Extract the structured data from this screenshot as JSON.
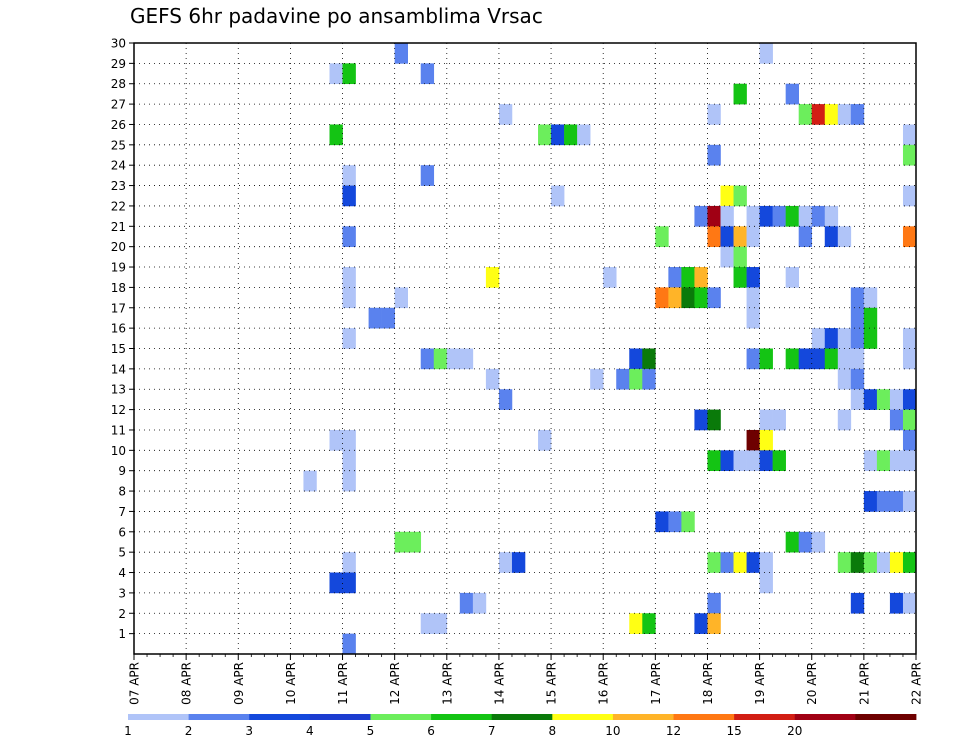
{
  "chart_data": {
    "type": "heatmap",
    "title": "GEFS 6hr padavine po ansamblima Vrsac",
    "x_tick_labels": [
      "07 APR",
      "08 APR",
      "09 APR",
      "10 APR",
      "11 APR",
      "12 APR",
      "13 APR",
      "14 APR",
      "15 APR",
      "16 APR",
      "17 APR",
      "18 APR",
      "19 APR",
      "20 APR",
      "21 APR",
      "22 APR"
    ],
    "y_tick_labels": [
      "1",
      "2",
      "3",
      "4",
      "5",
      "6",
      "7",
      "8",
      "9",
      "10",
      "11",
      "12",
      "13",
      "14",
      "15",
      "16",
      "17",
      "18",
      "19",
      "20",
      "21",
      "22",
      "23",
      "24",
      "25",
      "26",
      "27",
      "28",
      "29",
      "30"
    ],
    "x_range": [
      "07 APR 00Z",
      "22 APR 00Z"
    ],
    "y_range": [
      0,
      30
    ],
    "x_step_hours": 6,
    "grid": true,
    "colorbar": {
      "levels": [
        "1",
        "2",
        "3",
        "4",
        "5",
        "6",
        "7",
        "8",
        "10",
        "12",
        "15",
        "20"
      ],
      "colors": [
        "#b0c4f8",
        "#5a82ee",
        "#1448dc",
        "#1c3cd0",
        "#6cee5c",
        "#14c414",
        "#0a7a0a",
        "#ffff14",
        "#ffb428",
        "#ff7814",
        "#d21e14",
        "#a00014",
        "#6e0000"
      ]
    },
    "cells": [
      {
        "m": 30,
        "t": "12 APR 00Z",
        "b": 1
      },
      {
        "m": 30,
        "t": "19 APR 00Z",
        "b": 0
      },
      {
        "m": 29,
        "t": "10 APR 18Z",
        "b": 0
      },
      {
        "m": 29,
        "t": "11 APR 00Z",
        "b": 5
      },
      {
        "m": 29,
        "t": "12 APR 12Z",
        "b": 1
      },
      {
        "m": 28,
        "t": "18 APR 12Z",
        "b": 5
      },
      {
        "m": 28,
        "t": "19 APR 12Z",
        "b": 1
      },
      {
        "m": 27,
        "t": "14 APR 00Z",
        "b": 0
      },
      {
        "m": 27,
        "t": "18 APR 00Z",
        "b": 0
      },
      {
        "m": 27,
        "t": "19 APR 18Z",
        "b": 4
      },
      {
        "m": 27,
        "t": "20 APR 00Z",
        "b": 10
      },
      {
        "m": 27,
        "t": "20 APR 06Z",
        "b": 7
      },
      {
        "m": 27,
        "t": "20 APR 12Z",
        "b": 0
      },
      {
        "m": 27,
        "t": "20 APR 18Z",
        "b": 1
      },
      {
        "m": 26,
        "t": "10 APR 18Z",
        "b": 5
      },
      {
        "m": 26,
        "t": "14 APR 18Z",
        "b": 4
      },
      {
        "m": 26,
        "t": "15 APR 00Z",
        "b": 2
      },
      {
        "m": 26,
        "t": "15 APR 06Z",
        "b": 5
      },
      {
        "m": 26,
        "t": "15 APR 12Z",
        "b": 0
      },
      {
        "m": 26,
        "t": "21 APR 18Z",
        "b": 0
      },
      {
        "m": 25,
        "t": "18 APR 00Z",
        "b": 1
      },
      {
        "m": 25,
        "t": "21 APR 18Z",
        "b": 4
      },
      {
        "m": 24,
        "t": "11 APR 00Z",
        "b": 0
      },
      {
        "m": 24,
        "t": "12 APR 12Z",
        "b": 1
      },
      {
        "m": 23,
        "t": "11 APR 00Z",
        "b": 2
      },
      {
        "m": 23,
        "t": "15 APR 00Z",
        "b": 0
      },
      {
        "m": 23,
        "t": "18 APR 06Z",
        "b": 7
      },
      {
        "m": 23,
        "t": "18 APR 12Z",
        "b": 4
      },
      {
        "m": 23,
        "t": "21 APR 18Z",
        "b": 0
      },
      {
        "m": 22,
        "t": "17 APR 18Z",
        "b": 1
      },
      {
        "m": 22,
        "t": "18 APR 00Z",
        "b": 11
      },
      {
        "m": 22,
        "t": "18 APR 06Z",
        "b": 0
      },
      {
        "m": 22,
        "t": "18 APR 18Z",
        "b": 0
      },
      {
        "m": 22,
        "t": "19 APR 00Z",
        "b": 2
      },
      {
        "m": 22,
        "t": "19 APR 06Z",
        "b": 1
      },
      {
        "m": 22,
        "t": "19 APR 12Z",
        "b": 5
      },
      {
        "m": 22,
        "t": "19 APR 18Z",
        "b": 0
      },
      {
        "m": 22,
        "t": "20 APR 00Z",
        "b": 1
      },
      {
        "m": 22,
        "t": "20 APR 06Z",
        "b": 0
      },
      {
        "m": 21,
        "t": "11 APR 00Z",
        "b": 1
      },
      {
        "m": 21,
        "t": "17 APR 00Z",
        "b": 4
      },
      {
        "m": 21,
        "t": "18 APR 00Z",
        "b": 9
      },
      {
        "m": 21,
        "t": "18 APR 06Z",
        "b": 2
      },
      {
        "m": 21,
        "t": "18 APR 12Z",
        "b": 8
      },
      {
        "m": 21,
        "t": "18 APR 18Z",
        "b": 0
      },
      {
        "m": 21,
        "t": "19 APR 18Z",
        "b": 1
      },
      {
        "m": 21,
        "t": "20 APR 06Z",
        "b": 2
      },
      {
        "m": 21,
        "t": "20 APR 12Z",
        "b": 0
      },
      {
        "m": 21,
        "t": "21 APR 18Z",
        "b": 9
      },
      {
        "m": 20,
        "t": "18 APR 06Z",
        "b": 0
      },
      {
        "m": 20,
        "t": "18 APR 12Z",
        "b": 4
      },
      {
        "m": 19,
        "t": "11 APR 00Z",
        "b": 0
      },
      {
        "m": 19,
        "t": "13 APR 18Z",
        "b": 7
      },
      {
        "m": 19,
        "t": "16 APR 00Z",
        "b": 0
      },
      {
        "m": 19,
        "t": "17 APR 06Z",
        "b": 1
      },
      {
        "m": 19,
        "t": "17 APR 12Z",
        "b": 5
      },
      {
        "m": 19,
        "t": "17 APR 18Z",
        "b": 8
      },
      {
        "m": 19,
        "t": "18 APR 12Z",
        "b": 5
      },
      {
        "m": 19,
        "t": "18 APR 18Z",
        "b": 2
      },
      {
        "m": 19,
        "t": "19 APR 12Z",
        "b": 0
      },
      {
        "m": 18,
        "t": "11 APR 00Z",
        "b": 0
      },
      {
        "m": 18,
        "t": "12 APR 00Z",
        "b": 0
      },
      {
        "m": 18,
        "t": "17 APR 00Z",
        "b": 9
      },
      {
        "m": 18,
        "t": "17 APR 06Z",
        "b": 8
      },
      {
        "m": 18,
        "t": "17 APR 12Z",
        "b": 6
      },
      {
        "m": 18,
        "t": "17 APR 18Z",
        "b": 5
      },
      {
        "m": 18,
        "t": "18 APR 00Z",
        "b": 1
      },
      {
        "m": 18,
        "t": "18 APR 18Z",
        "b": 0
      },
      {
        "m": 18,
        "t": "20 APR 18Z",
        "b": 1
      },
      {
        "m": 18,
        "t": "21 APR 00Z",
        "b": 0
      },
      {
        "m": 17,
        "t": "11 APR 12Z",
        "b": 1
      },
      {
        "m": 17,
        "t": "11 APR 18Z",
        "b": 1
      },
      {
        "m": 17,
        "t": "18 APR 18Z",
        "b": 0
      },
      {
        "m": 17,
        "t": "20 APR 18Z",
        "b": 1
      },
      {
        "m": 17,
        "t": "21 APR 00Z",
        "b": 5
      },
      {
        "m": 16,
        "t": "11 APR 00Z",
        "b": 0
      },
      {
        "m": 16,
        "t": "20 APR 00Z",
        "b": 0
      },
      {
        "m": 16,
        "t": "20 APR 06Z",
        "b": 2
      },
      {
        "m": 16,
        "t": "20 APR 12Z",
        "b": 0
      },
      {
        "m": 16,
        "t": "20 APR 18Z",
        "b": 1
      },
      {
        "m": 16,
        "t": "21 APR 00Z",
        "b": 5
      },
      {
        "m": 16,
        "t": "21 APR 18Z",
        "b": 0
      },
      {
        "m": 15,
        "t": "12 APR 12Z",
        "b": 1
      },
      {
        "m": 15,
        "t": "12 APR 18Z",
        "b": 4
      },
      {
        "m": 15,
        "t": "13 APR 00Z",
        "b": 0
      },
      {
        "m": 15,
        "t": "13 APR 06Z",
        "b": 0
      },
      {
        "m": 15,
        "t": "16 APR 12Z",
        "b": 2
      },
      {
        "m": 15,
        "t": "16 APR 18Z",
        "b": 6
      },
      {
        "m": 15,
        "t": "18 APR 18Z",
        "b": 1
      },
      {
        "m": 15,
        "t": "19 APR 00Z",
        "b": 5
      },
      {
        "m": 15,
        "t": "19 APR 12Z",
        "b": 5
      },
      {
        "m": 15,
        "t": "19 APR 18Z",
        "b": 2
      },
      {
        "m": 15,
        "t": "20 APR 00Z",
        "b": 2
      },
      {
        "m": 15,
        "t": "20 APR 06Z",
        "b": 5
      },
      {
        "m": 15,
        "t": "20 APR 12Z",
        "b": 0
      },
      {
        "m": 15,
        "t": "20 APR 18Z",
        "b": 0
      },
      {
        "m": 15,
        "t": "21 APR 18Z",
        "b": 0
      },
      {
        "m": 14,
        "t": "13 APR 18Z",
        "b": 0
      },
      {
        "m": 14,
        "t": "15 APR 18Z",
        "b": 0
      },
      {
        "m": 14,
        "t": "16 APR 06Z",
        "b": 1
      },
      {
        "m": 14,
        "t": "16 APR 12Z",
        "b": 4
      },
      {
        "m": 14,
        "t": "16 APR 18Z",
        "b": 1
      },
      {
        "m": 14,
        "t": "20 APR 12Z",
        "b": 0
      },
      {
        "m": 14,
        "t": "20 APR 18Z",
        "b": 1
      },
      {
        "m": 13,
        "t": "14 APR 00Z",
        "b": 1
      },
      {
        "m": 13,
        "t": "20 APR 18Z",
        "b": 0
      },
      {
        "m": 13,
        "t": "21 APR 00Z",
        "b": 2
      },
      {
        "m": 13,
        "t": "21 APR 06Z",
        "b": 4
      },
      {
        "m": 13,
        "t": "21 APR 12Z",
        "b": 0
      },
      {
        "m": 13,
        "t": "21 APR 18Z",
        "b": 2
      },
      {
        "m": 12,
        "t": "17 APR 18Z",
        "b": 2
      },
      {
        "m": 12,
        "t": "18 APR 00Z",
        "b": 6
      },
      {
        "m": 12,
        "t": "19 APR 00Z",
        "b": 0
      },
      {
        "m": 12,
        "t": "19 APR 06Z",
        "b": 0
      },
      {
        "m": 12,
        "t": "20 APR 12Z",
        "b": 0
      },
      {
        "m": 12,
        "t": "21 APR 12Z",
        "b": 1
      },
      {
        "m": 12,
        "t": "21 APR 18Z",
        "b": 4
      },
      {
        "m": 11,
        "t": "10 APR 18Z",
        "b": 0
      },
      {
        "m": 11,
        "t": "11 APR 00Z",
        "b": 0
      },
      {
        "m": 11,
        "t": "14 APR 18Z",
        "b": 0
      },
      {
        "m": 11,
        "t": "18 APR 18Z",
        "b": 12
      },
      {
        "m": 11,
        "t": "19 APR 00Z",
        "b": 7
      },
      {
        "m": 11,
        "t": "21 APR 18Z",
        "b": 1
      },
      {
        "m": 10,
        "t": "11 APR 00Z",
        "b": 0
      },
      {
        "m": 10,
        "t": "18 APR 00Z",
        "b": 5
      },
      {
        "m": 10,
        "t": "18 APR 06Z",
        "b": 2
      },
      {
        "m": 10,
        "t": "18 APR 12Z",
        "b": 0
      },
      {
        "m": 10,
        "t": "18 APR 18Z",
        "b": 0
      },
      {
        "m": 10,
        "t": "19 APR 00Z",
        "b": 2
      },
      {
        "m": 10,
        "t": "19 APR 06Z",
        "b": 5
      },
      {
        "m": 10,
        "t": "21 APR 00Z",
        "b": 0
      },
      {
        "m": 10,
        "t": "21 APR 06Z",
        "b": 4
      },
      {
        "m": 10,
        "t": "21 APR 12Z",
        "b": 0
      },
      {
        "m": 10,
        "t": "21 APR 18Z",
        "b": 0
      },
      {
        "m": 9,
        "t": "10 APR 06Z",
        "b": 0
      },
      {
        "m": 9,
        "t": "11 APR 00Z",
        "b": 0
      },
      {
        "m": 8,
        "t": "21 APR 00Z",
        "b": 2
      },
      {
        "m": 8,
        "t": "21 APR 06Z",
        "b": 1
      },
      {
        "m": 8,
        "t": "21 APR 12Z",
        "b": 1
      },
      {
        "m": 8,
        "t": "21 APR 18Z",
        "b": 0
      },
      {
        "m": 7,
        "t": "17 APR 00Z",
        "b": 2
      },
      {
        "m": 7,
        "t": "17 APR 06Z",
        "b": 1
      },
      {
        "m": 7,
        "t": "17 APR 12Z",
        "b": 4
      },
      {
        "m": 6,
        "t": "12 APR 00Z",
        "b": 4
      },
      {
        "m": 6,
        "t": "12 APR 06Z",
        "b": 4
      },
      {
        "m": 6,
        "t": "19 APR 12Z",
        "b": 5
      },
      {
        "m": 6,
        "t": "19 APR 18Z",
        "b": 1
      },
      {
        "m": 6,
        "t": "20 APR 00Z",
        "b": 0
      },
      {
        "m": 5,
        "t": "11 APR 00Z",
        "b": 0
      },
      {
        "m": 5,
        "t": "14 APR 00Z",
        "b": 0
      },
      {
        "m": 5,
        "t": "14 APR 06Z",
        "b": 2
      },
      {
        "m": 5,
        "t": "18 APR 00Z",
        "b": 4
      },
      {
        "m": 5,
        "t": "18 APR 06Z",
        "b": 1
      },
      {
        "m": 5,
        "t": "18 APR 12Z",
        "b": 7
      },
      {
        "m": 5,
        "t": "18 APR 18Z",
        "b": 2
      },
      {
        "m": 5,
        "t": "19 APR 00Z",
        "b": 0
      },
      {
        "m": 5,
        "t": "20 APR 12Z",
        "b": 4
      },
      {
        "m": 5,
        "t": "20 APR 18Z",
        "b": 6
      },
      {
        "m": 5,
        "t": "21 APR 00Z",
        "b": 4
      },
      {
        "m": 5,
        "t": "21 APR 06Z",
        "b": 0
      },
      {
        "m": 5,
        "t": "21 APR 12Z",
        "b": 7
      },
      {
        "m": 5,
        "t": "21 APR 18Z",
        "b": 5
      },
      {
        "m": 4,
        "t": "10 APR 18Z",
        "b": 2
      },
      {
        "m": 4,
        "t": "11 APR 00Z",
        "b": 2
      },
      {
        "m": 4,
        "t": "19 APR 00Z",
        "b": 0
      },
      {
        "m": 3,
        "t": "13 APR 06Z",
        "b": 1
      },
      {
        "m": 3,
        "t": "13 APR 12Z",
        "b": 0
      },
      {
        "m": 3,
        "t": "18 APR 00Z",
        "b": 1
      },
      {
        "m": 3,
        "t": "20 APR 18Z",
        "b": 2
      },
      {
        "m": 3,
        "t": "21 APR 12Z",
        "b": 2
      },
      {
        "m": 3,
        "t": "21 APR 18Z",
        "b": 0
      },
      {
        "m": 2,
        "t": "12 APR 12Z",
        "b": 0
      },
      {
        "m": 2,
        "t": "12 APR 18Z",
        "b": 0
      },
      {
        "m": 2,
        "t": "16 APR 12Z",
        "b": 7
      },
      {
        "m": 2,
        "t": "16 APR 18Z",
        "b": 5
      },
      {
        "m": 2,
        "t": "17 APR 18Z",
        "b": 2
      },
      {
        "m": 2,
        "t": "18 APR 00Z",
        "b": 8
      },
      {
        "m": 1,
        "t": "11 APR 00Z",
        "b": 1
      }
    ]
  }
}
